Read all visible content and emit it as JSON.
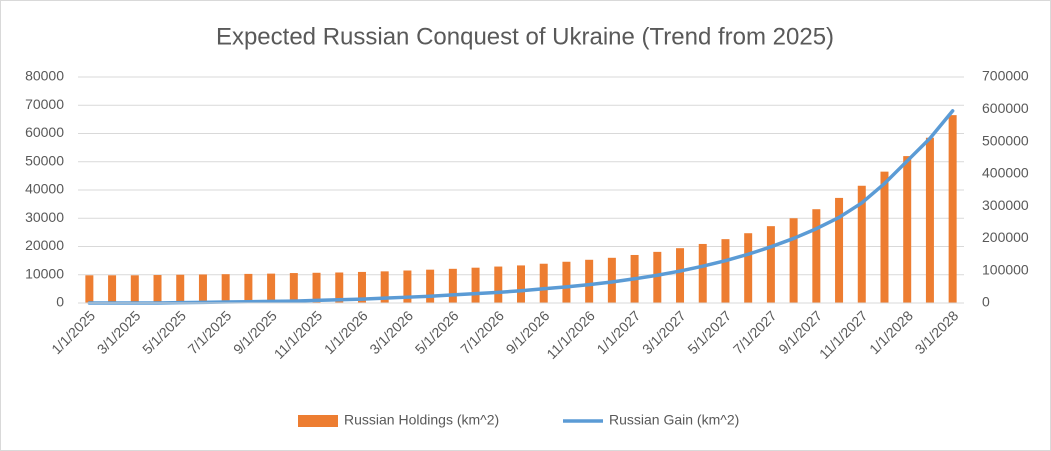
{
  "chart_data": {
    "type": "bar-line",
    "title": "Expected Russian Conquest of Ukraine (Trend from 2025)",
    "categories": [
      "1/1/2025",
      null,
      "3/1/2025",
      null,
      "5/1/2025",
      null,
      "7/1/2025",
      null,
      "9/1/2025",
      null,
      "11/1/2025",
      null,
      "1/1/2026",
      null,
      "3/1/2026",
      null,
      "5/1/2026",
      null,
      "7/1/2026",
      null,
      "9/1/2026",
      null,
      "11/1/2026",
      null,
      "1/1/2027",
      null,
      "3/1/2027",
      null,
      "5/1/2027",
      null,
      "7/1/2027",
      null,
      "9/1/2027",
      null,
      "11/1/2027",
      null,
      "1/1/2028",
      null,
      "3/1/2028"
    ],
    "series": [
      {
        "name": "Russian Holdings (km^2)",
        "type": "bar",
        "color": "#ed7d31",
        "values": [
          9800,
          9800,
          9800,
          9900,
          10000,
          10100,
          10200,
          10300,
          10400,
          10600,
          10700,
          10800,
          11000,
          11200,
          11500,
          11800,
          12100,
          12500,
          12900,
          13300,
          13900,
          14600,
          15300,
          16000,
          17000,
          18100,
          19400,
          20900,
          22600,
          24700,
          27200,
          30000,
          33200,
          37200,
          41500,
          46500,
          52000,
          58500,
          66500
        ]
      },
      {
        "name": "Russian Gain (km^2)",
        "type": "line",
        "axis": "y2",
        "color": "#5b9bd5",
        "values": [
          0,
          0,
          0,
          0,
          1000,
          2000,
          3000,
          4000,
          5000,
          6000,
          8000,
          10000,
          12000,
          15000,
          18000,
          21000,
          25000,
          29000,
          33000,
          38000,
          44000,
          50000,
          57000,
          65000,
          75000,
          86000,
          99000,
          114000,
          131000,
          151000,
          174000,
          200000,
          230000,
          265000,
          310000,
          370000,
          440000,
          510000,
          595000
        ]
      }
    ],
    "ylim": [
      0,
      80000
    ],
    "yticks": [
      0,
      10000,
      20000,
      30000,
      40000,
      50000,
      60000,
      70000,
      80000
    ],
    "y2lim": [
      0,
      700000
    ],
    "y2ticks": [
      0,
      100000,
      200000,
      300000,
      400000,
      500000,
      600000,
      700000
    ],
    "grid": true,
    "legend": "bottom"
  }
}
